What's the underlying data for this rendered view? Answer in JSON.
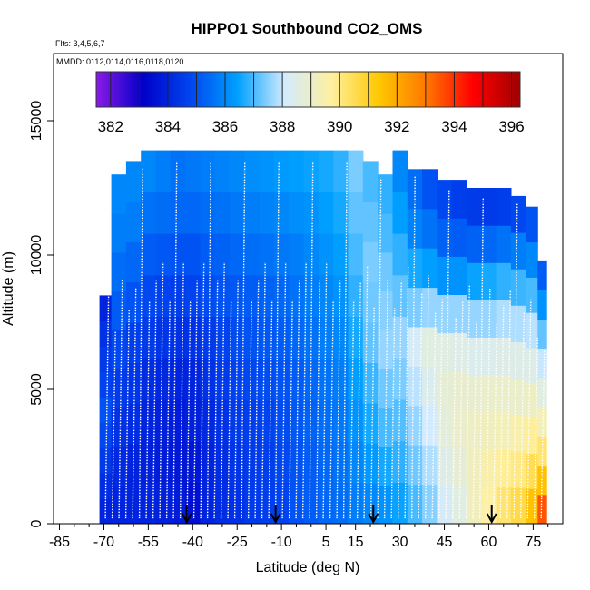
{
  "chart_data": {
    "type": "heatmap",
    "title": "HIPPO1 Southbound CO2_OMS",
    "subtitle_flights": "Flts: 3,4,5,6,7",
    "subtitle_dates": "MMDD: 0112,0114,0116,0118,0120",
    "xlabel": "Latitude (deg N)",
    "ylabel": "Altitude (m)",
    "xlim": [
      -87,
      85
    ],
    "ylim": [
      0,
      17500
    ],
    "x_ticks": [
      -85,
      -70,
      -55,
      -40,
      -25,
      -10,
      5,
      15,
      30,
      45,
      60,
      75
    ],
    "x_tick_labels": [
      "-85",
      "-70",
      "-55",
      "-40",
      "-25",
      "-10",
      "5",
      "15",
      "30",
      "45",
      "60",
      "75"
    ],
    "y_ticks": [
      0,
      5000,
      10000,
      15000
    ],
    "y_tick_labels": [
      "0",
      "5000",
      "10000",
      "15000"
    ],
    "colorbar": {
      "label_values": [
        382,
        384,
        386,
        388,
        390,
        392,
        394,
        396
      ],
      "labels": [
        "382",
        "384",
        "386",
        "388",
        "390",
        "392",
        "394",
        "396"
      ],
      "range": [
        381.5,
        396.3
      ],
      "colors": [
        "#8b1ae6",
        "#0000c8",
        "#0046f0",
        "#00a0ff",
        "#d2ebff",
        "#fff0a0",
        "#ffc800",
        "#ff7800",
        "#ff0000",
        "#a00000"
      ]
    },
    "flight_boundary_latitudes": [
      -42,
      -12,
      21,
      61
    ],
    "columns": [
      {
        "lat": -70,
        "top": 8500,
        "values": [
          384.0,
          384.2,
          384.5,
          384.8,
          385.0,
          384.7,
          384.5,
          384.3,
          384.0
        ]
      },
      {
        "lat": -65,
        "top": 13000,
        "values": [
          384.0,
          384.1,
          384.3,
          384.5,
          384.8,
          385.2,
          385.5,
          385.8,
          386.0
        ]
      },
      {
        "lat": -60,
        "top": 13500,
        "values": [
          384.0,
          384.0,
          384.2,
          384.4,
          384.6,
          385.0,
          385.4,
          385.8,
          386.0
        ]
      },
      {
        "lat": -55,
        "top": 13900,
        "values": [
          384.0,
          383.9,
          384.0,
          384.2,
          384.5,
          384.8,
          385.2,
          385.6,
          386.0
        ]
      },
      {
        "lat": -50,
        "top": 13900,
        "values": [
          383.9,
          383.8,
          383.9,
          384.1,
          384.4,
          384.7,
          385.1,
          385.5,
          385.8
        ]
      },
      {
        "lat": -45,
        "top": 13900,
        "values": [
          383.8,
          383.7,
          383.8,
          384.0,
          384.3,
          384.6,
          385.0,
          385.4,
          385.6
        ]
      },
      {
        "lat": -40,
        "top": 13900,
        "values": [
          383.5,
          383.7,
          383.9,
          384.0,
          384.3,
          384.7,
          385.0,
          385.4,
          385.7
        ]
      },
      {
        "lat": -35,
        "top": 13900,
        "values": [
          384.0,
          384.0,
          384.1,
          384.3,
          384.5,
          384.9,
          385.2,
          385.5,
          385.8
        ]
      },
      {
        "lat": -30,
        "top": 13900,
        "values": [
          384.2,
          384.2,
          384.3,
          384.5,
          384.7,
          385.0,
          385.3,
          385.6,
          385.9
        ]
      },
      {
        "lat": -25,
        "top": 13900,
        "values": [
          384.3,
          384.4,
          384.5,
          384.7,
          384.9,
          385.1,
          385.4,
          385.7,
          386.0
        ]
      },
      {
        "lat": -20,
        "top": 13900,
        "values": [
          384.5,
          384.5,
          384.6,
          384.8,
          385.0,
          385.2,
          385.5,
          385.8,
          386.1
        ]
      },
      {
        "lat": -15,
        "top": 13900,
        "values": [
          384.6,
          384.6,
          384.7,
          384.9,
          385.1,
          385.3,
          385.6,
          385.9,
          386.2
        ]
      },
      {
        "lat": -10,
        "top": 13900,
        "values": [
          384.7,
          384.8,
          384.9,
          385.0,
          385.2,
          385.4,
          385.7,
          386.0,
          386.3
        ]
      },
      {
        "lat": -5,
        "top": 13900,
        "values": [
          385.0,
          385.0,
          385.1,
          385.2,
          385.4,
          385.6,
          385.8,
          386.1,
          386.4
        ]
      },
      {
        "lat": 0,
        "top": 13900,
        "values": [
          385.2,
          385.2,
          385.3,
          385.4,
          385.6,
          385.8,
          386.0,
          386.2,
          386.5
        ]
      },
      {
        "lat": 5,
        "top": 13900,
        "values": [
          385.4,
          385.4,
          385.5,
          385.6,
          385.8,
          386.0,
          386.2,
          386.4,
          386.6
        ]
      },
      {
        "lat": 10,
        "top": 13900,
        "values": [
          385.5,
          385.6,
          385.7,
          385.8,
          386.0,
          386.2,
          386.4,
          386.6,
          386.8
        ]
      },
      {
        "lat": 15,
        "top": 13900,
        "values": [
          385.8,
          386.0,
          386.2,
          386.4,
          386.6,
          386.8,
          387.0,
          387.2,
          387.4
        ]
      },
      {
        "lat": 20,
        "top": 13500,
        "values": [
          386.0,
          386.3,
          386.6,
          386.9,
          387.2,
          387.3,
          387.4,
          387.2,
          387.0
        ]
      },
      {
        "lat": 25,
        "top": 13000,
        "values": [
          386.2,
          386.6,
          387.0,
          387.3,
          387.6,
          387.5,
          387.3,
          387.0,
          386.8
        ]
      },
      {
        "lat": 30,
        "top": 13900,
        "values": [
          386.5,
          386.8,
          387.1,
          387.4,
          387.6,
          387.2,
          386.8,
          386.4,
          386.0
        ]
      },
      {
        "lat": 35,
        "top": 13200,
        "values": [
          387.0,
          387.3,
          387.6,
          387.9,
          388.2,
          387.4,
          386.6,
          385.9,
          385.5
        ]
      },
      {
        "lat": 40,
        "top": 13200,
        "values": [
          387.5,
          387.8,
          388.1,
          388.4,
          388.6,
          387.6,
          386.4,
          385.6,
          385.0
        ]
      },
      {
        "lat": 45,
        "top": 12800,
        "values": [
          388.2,
          388.5,
          388.7,
          388.8,
          388.6,
          387.6,
          386.2,
          385.3,
          384.8
        ]
      },
      {
        "lat": 50,
        "top": 12800,
        "values": [
          388.6,
          388.8,
          389.0,
          388.9,
          388.5,
          387.6,
          386.2,
          385.2,
          384.6
        ]
      },
      {
        "lat": 55,
        "top": 12500,
        "values": [
          389.2,
          389.2,
          389.1,
          388.9,
          388.4,
          387.6,
          386.5,
          385.3,
          384.5
        ]
      },
      {
        "lat": 60,
        "top": 12500,
        "values": [
          389.6,
          389.5,
          389.2,
          389.0,
          388.4,
          387.6,
          386.6,
          385.4,
          384.5
        ]
      },
      {
        "lat": 65,
        "top": 12500,
        "values": [
          390.2,
          389.8,
          389.3,
          389.0,
          388.5,
          387.8,
          386.8,
          385.6,
          384.6
        ]
      },
      {
        "lat": 70,
        "top": 12200,
        "values": [
          390.6,
          390.0,
          389.5,
          389.0,
          388.5,
          387.8,
          386.9,
          385.8,
          384.8
        ]
      },
      {
        "lat": 75,
        "top": 11800,
        "values": [
          391.5,
          390.5,
          389.8,
          389.1,
          388.5,
          387.9,
          387.0,
          386.0,
          385.0
        ]
      },
      {
        "lat": 78,
        "top": 9800,
        "values": [
          393.5,
          391.5,
          390.2,
          389.3,
          388.6,
          388.0,
          387.2,
          386.2,
          385.2
        ]
      }
    ]
  }
}
